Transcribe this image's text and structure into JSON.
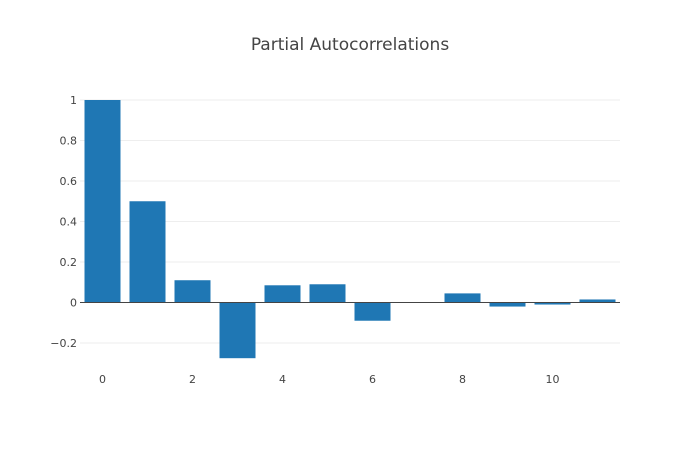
{
  "chart_data": {
    "type": "bar",
    "title": "Partial Autocorrelations",
    "xlabel": "",
    "ylabel": "",
    "categories": [
      0,
      1,
      2,
      3,
      4,
      5,
      6,
      7,
      8,
      9,
      10,
      11
    ],
    "values": [
      1.0,
      0.5,
      0.11,
      -0.275,
      0.085,
      0.09,
      -0.09,
      0.0,
      0.045,
      -0.02,
      -0.01,
      0.015
    ],
    "ylim": [
      -0.3333,
      1.0
    ],
    "yticks": [
      -0.2,
      0,
      0.2,
      0.4,
      0.6,
      0.8,
      1
    ],
    "ytick_labels": [
      "−0.2",
      "0",
      "0.2",
      "0.4",
      "0.6",
      "0.8",
      "1"
    ],
    "xticks": [
      0,
      2,
      4,
      6,
      8,
      10
    ],
    "xtick_labels": [
      "0",
      "2",
      "4",
      "6",
      "8",
      "10"
    ],
    "xlim": [
      -0.5,
      11.5
    ],
    "grid": true,
    "bar_color": "#1f77b4",
    "legend": "none"
  }
}
